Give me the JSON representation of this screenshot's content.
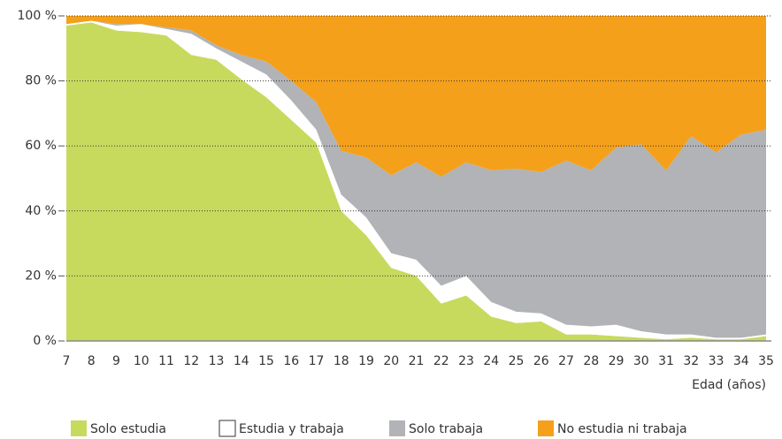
{
  "chart_data": {
    "type": "stacked_area",
    "xlabel": "Edad (años)",
    "categories": [
      "7",
      "8",
      "9",
      "10",
      "11",
      "12",
      "13",
      "14",
      "15",
      "16",
      "17",
      "18",
      "19",
      "20",
      "21",
      "22",
      "23",
      "24",
      "25",
      "26",
      "27",
      "28",
      "29",
      "30",
      "31",
      "32",
      "33",
      "34",
      "35"
    ],
    "series": [
      {
        "name": "Solo estudia",
        "color": "#c8da5e",
        "values": [
          97,
          98,
          95.5,
          95,
          94,
          88,
          86.5,
          80.5,
          75,
          68,
          61,
          40,
          32.5,
          22.5,
          20,
          11.5,
          14,
          7.5,
          5.5,
          6,
          2,
          2,
          1.5,
          1,
          0.5,
          1,
          0.5,
          0.5,
          1.5
        ]
      },
      {
        "name": "Estudia y trabaja",
        "color": "#ffffff",
        "values": [
          0.5,
          0.5,
          1.5,
          2.5,
          2,
          6.5,
          3.5,
          5.5,
          7,
          6,
          4,
          5,
          5.5,
          4.5,
          5,
          5.5,
          6,
          4.5,
          3.5,
          2.5,
          3,
          2.5,
          3.5,
          2,
          1.5,
          1,
          0.5,
          0.5,
          0.5
        ]
      },
      {
        "name": "Solo trabaja",
        "color": "#b1b3b6",
        "values": [
          0,
          0,
          0.5,
          0,
          0.5,
          1,
          1,
          2,
          4,
          6,
          8.5,
          13.5,
          18.5,
          24,
          30,
          33.5,
          35,
          40.5,
          44,
          43.5,
          50.5,
          48,
          54.5,
          57.5,
          50.5,
          61,
          57,
          62.5,
          63
        ]
      },
      {
        "name": "No estudia ni trabaja",
        "color": "#f5a01a",
        "values": [
          2.5,
          1.5,
          2.5,
          2.5,
          3.5,
          4.5,
          9,
          12,
          14,
          20,
          26.5,
          41.5,
          43.5,
          49,
          45,
          49.5,
          45,
          47.5,
          47,
          48,
          44.5,
          47.5,
          40.5,
          39.5,
          47.5,
          37,
          42,
          36.5,
          35
        ]
      }
    ],
    "ylim": [
      0,
      100
    ],
    "yticks": [
      {
        "value": 0,
        "label": "0 %"
      },
      {
        "value": 20,
        "label": "20 %"
      },
      {
        "value": 40,
        "label": "40 %"
      },
      {
        "value": 60,
        "label": "60 %"
      },
      {
        "value": 80,
        "label": "80 %"
      },
      {
        "value": 100,
        "label": "100 %"
      }
    ],
    "grid": true
  }
}
